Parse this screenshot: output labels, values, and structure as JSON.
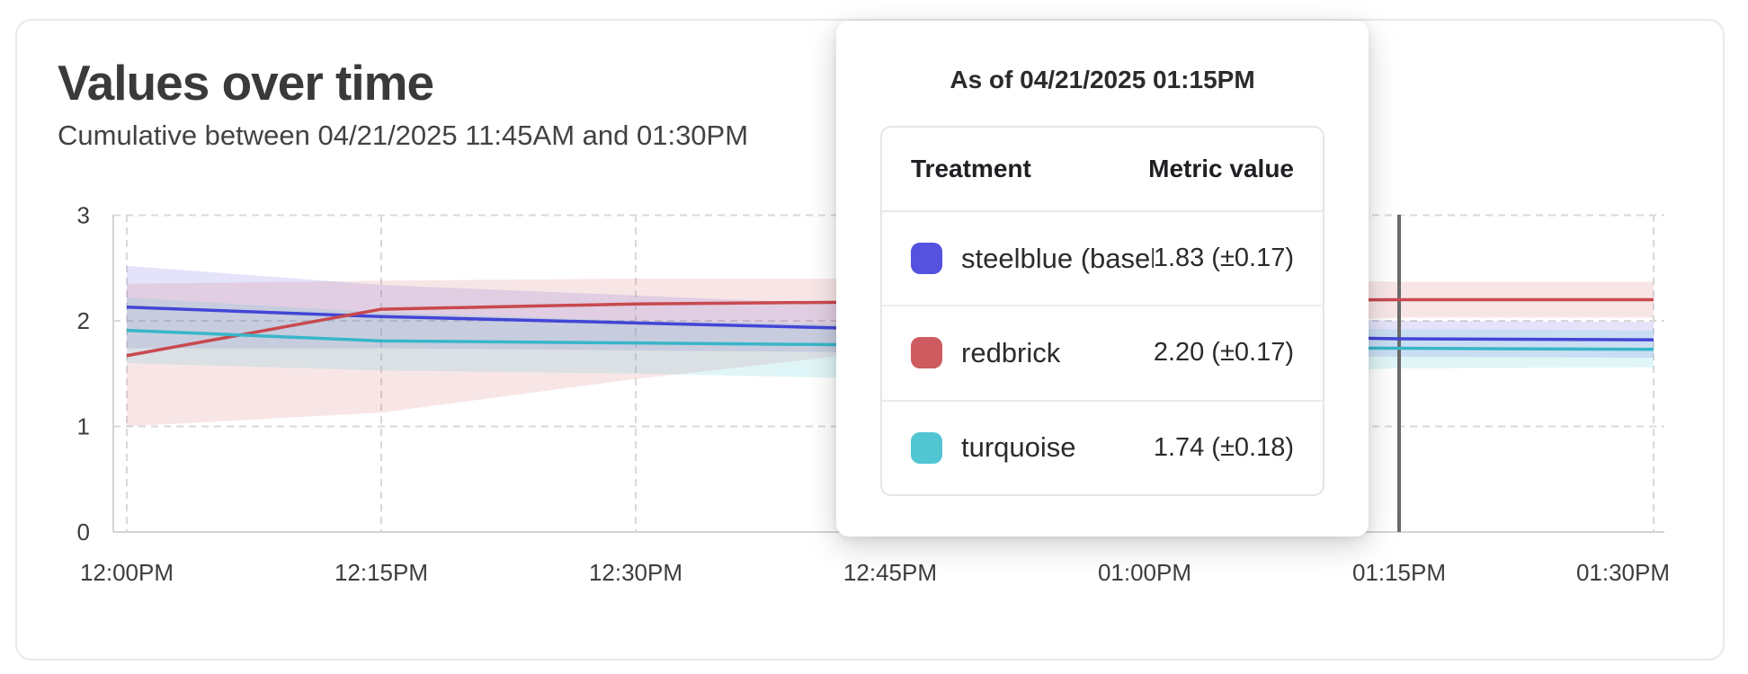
{
  "header": {
    "title": "Values over time",
    "subtitle": "Cumulative between 04/21/2025 11:45AM and 01:30PM"
  },
  "chart_data": {
    "type": "line",
    "title": "Values over time",
    "xlabel": "",
    "ylabel": "",
    "ylim": [
      0,
      3
    ],
    "grid": true,
    "x_tick_labels": [
      "12:00PM",
      "12:15PM",
      "12:30PM",
      "12:45PM",
      "01:00PM",
      "01:15PM",
      "01:30PM"
    ],
    "x_minutes": [
      0,
      15,
      30,
      45,
      60,
      75,
      90
    ],
    "y_ticks": [
      0,
      1,
      2,
      3
    ],
    "hover": {
      "x_label": "01:15PM",
      "x_minute": 75,
      "line_color": "#6a6a6a"
    },
    "series": [
      {
        "name": "steelblue (baseline)",
        "line_color": "#4345d6",
        "band_color": "rgba(84,82,224,0.16)",
        "values": [
          2.13,
          2.04,
          1.98,
          1.92,
          1.87,
          1.83,
          1.82
        ],
        "upper": [
          2.52,
          2.34,
          2.24,
          2.14,
          2.06,
          2.0,
          1.99
        ],
        "lower": [
          1.74,
          1.74,
          1.72,
          1.7,
          1.68,
          1.66,
          1.65
        ]
      },
      {
        "name": "redbrick",
        "line_color": "#c8494f",
        "band_color": "rgba(205,90,95,0.15)",
        "values": [
          1.67,
          2.11,
          2.16,
          2.18,
          2.19,
          2.2,
          2.2
        ],
        "upper": [
          2.35,
          2.38,
          2.4,
          2.4,
          2.39,
          2.37,
          2.37
        ],
        "lower": [
          1.0,
          1.13,
          1.45,
          1.72,
          1.93,
          2.03,
          2.03
        ]
      },
      {
        "name": "turquoise",
        "line_color": "#38b6c8",
        "band_color": "rgba(82,197,210,0.18)",
        "values": [
          1.91,
          1.81,
          1.79,
          1.77,
          1.75,
          1.74,
          1.73
        ],
        "upper": [
          2.22,
          2.08,
          2.0,
          1.96,
          1.94,
          1.92,
          1.91
        ],
        "lower": [
          1.6,
          1.53,
          1.5,
          1.45,
          1.48,
          1.55,
          1.56
        ]
      }
    ]
  },
  "tooltip": {
    "title": "As of 04/21/2025 01:15PM",
    "columns": {
      "treatment": "Treatment",
      "metric": "Metric value"
    },
    "rows": [
      {
        "label": "steelblue  (baseline)",
        "swatch_color": "#5552e0",
        "value": "1.83 (±0.17)"
      },
      {
        "label": "redbrick",
        "swatch_color": "#cd5b5f",
        "value": "2.20 (±0.17)"
      },
      {
        "label": "turquoise",
        "swatch_color": "#52c5d2",
        "value": "1.74 (±0.18)"
      }
    ]
  }
}
